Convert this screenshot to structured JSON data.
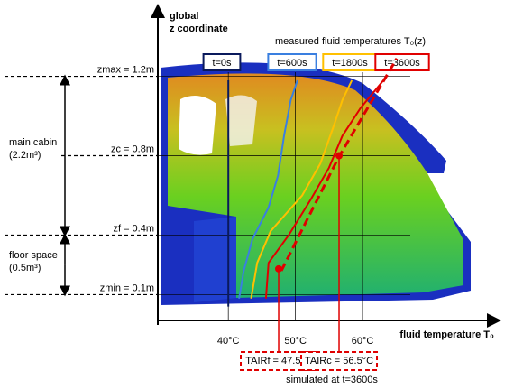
{
  "chart_data": {
    "type": "line",
    "y_label_line1": "global",
    "y_label_line2": "z coordinate",
    "x_label": "fluid temperature T₀",
    "legend_title": "measured fluid temperatures T₀(z)",
    "xlim": [
      29.5,
      79.6
    ],
    "ylim": [
      -0.03,
      1.53
    ],
    "xticks": [
      {
        "value": 40,
        "label": "40°C"
      },
      {
        "value": 50,
        "label": "50°C"
      },
      {
        "value": 60,
        "label": "60°C"
      }
    ],
    "yticks": [
      {
        "value": 0.1,
        "label": "zmin = 0.1m"
      },
      {
        "value": 0.4,
        "label": "zf = 0.4m"
      },
      {
        "value": 0.8,
        "label": "zc = 0.8m"
      },
      {
        "value": 1.2,
        "label": "zmax = 1.2m"
      }
    ],
    "grid": true,
    "series": [
      {
        "name": "t=0s",
        "color": "#0a1a5c",
        "x": [
          40,
          40
        ],
        "y": [
          0.04,
          1.18
        ]
      },
      {
        "name": "t=600s",
        "color": "#3a7fe0",
        "x": [
          41.6,
          42.3,
          43.6,
          46.0,
          47.4,
          48.3,
          49.3,
          50.3
        ],
        "y": [
          0.08,
          0.22,
          0.38,
          0.54,
          0.7,
          0.9,
          1.08,
          1.18
        ]
      },
      {
        "name": "t=1800s",
        "color": "#ffc000",
        "x": [
          43.4,
          44.3,
          46.3,
          51.0,
          53.7,
          55.7,
          57.0,
          58.4
        ],
        "y": [
          0.08,
          0.26,
          0.42,
          0.6,
          0.76,
          0.95,
          1.08,
          1.18
        ]
      },
      {
        "name": "t=3600s",
        "color": "#e00000",
        "x": [
          45.6,
          46.0,
          49.0,
          52.3,
          55.0,
          57.0,
          59.7,
          63.1
        ],
        "y": [
          0.08,
          0.26,
          0.4,
          0.58,
          0.74,
          0.9,
          1.04,
          1.18
        ]
      }
    ],
    "simulated": {
      "label": "simulated at t=3600s",
      "color": "#e00000",
      "x": [
        47.9,
        56.4,
        65.1
      ],
      "y": [
        0.22,
        0.79,
        1.29
      ]
    },
    "annotations": [
      {
        "text": "TAIRf = 47.5°C",
        "x": 47.5,
        "y": 0.23
      },
      {
        "text": "TAIRc = 56.5°C",
        "x": 56.5,
        "y": 0.8
      }
    ],
    "zones": [
      {
        "name": "main cabin",
        "volume": "(2.2m³)"
      },
      {
        "name": "floor space",
        "volume": "(0.5m³)"
      }
    ]
  }
}
